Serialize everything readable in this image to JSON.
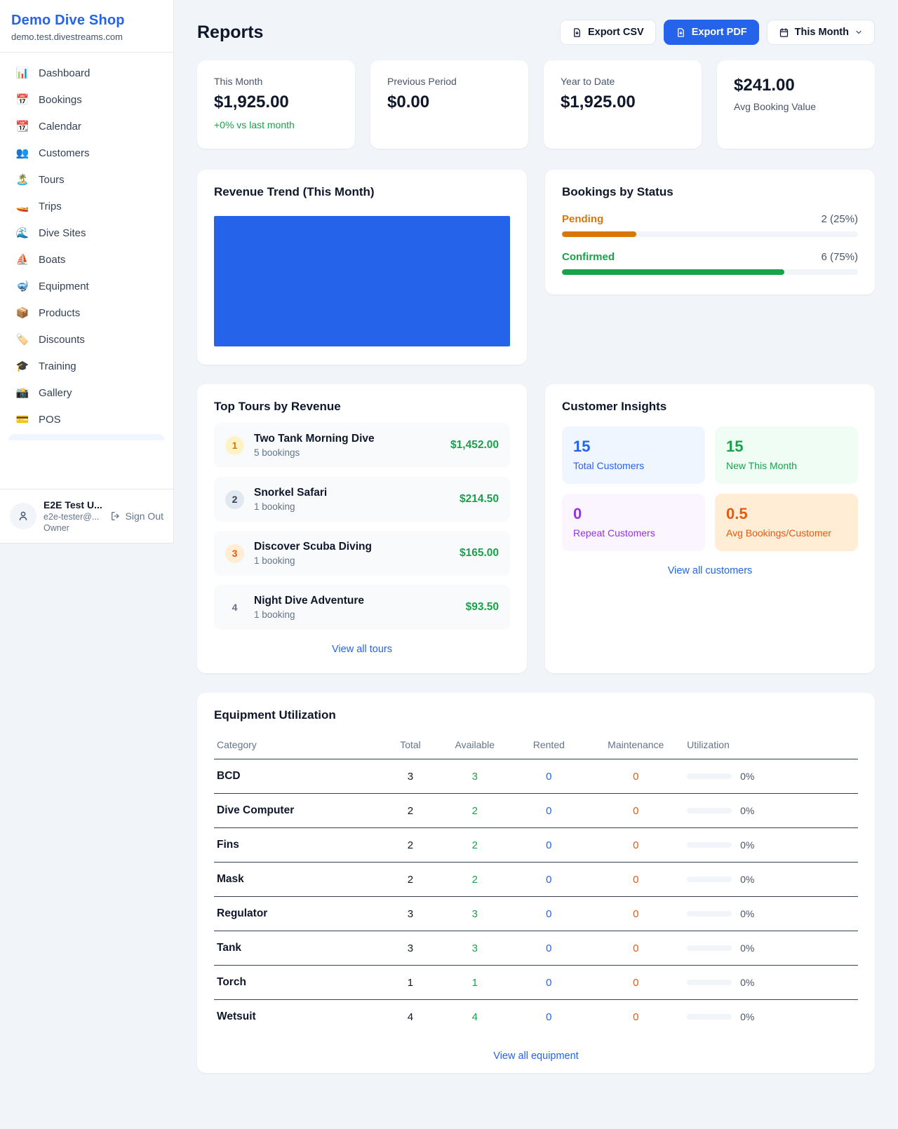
{
  "colors": {
    "accent": "#2563eb",
    "green": "#16a34a",
    "amber": "#d97706",
    "orange": "#ea580c",
    "purple": "#9333ea"
  },
  "sidebar": {
    "shop_name": "Demo Dive Shop",
    "shop_domain": "demo.test.divestreams.com",
    "items": [
      {
        "icon": "📊",
        "label": "Dashboard"
      },
      {
        "icon": "📅",
        "label": "Bookings"
      },
      {
        "icon": "📆",
        "label": "Calendar"
      },
      {
        "icon": "👥",
        "label": "Customers"
      },
      {
        "icon": "🏝️",
        "label": "Tours"
      },
      {
        "icon": "🚤",
        "label": "Trips"
      },
      {
        "icon": "🌊",
        "label": "Dive Sites"
      },
      {
        "icon": "⛵",
        "label": "Boats"
      },
      {
        "icon": "🤿",
        "label": "Equipment"
      },
      {
        "icon": "📦",
        "label": "Products"
      },
      {
        "icon": "🏷️",
        "label": "Discounts"
      },
      {
        "icon": "🎓",
        "label": "Training"
      },
      {
        "icon": "📸",
        "label": "Gallery"
      },
      {
        "icon": "💳",
        "label": "POS"
      }
    ],
    "user": {
      "name": "E2E Test U...",
      "email": "e2e-tester@...",
      "role": "Owner",
      "sign_out": "Sign Out"
    }
  },
  "header": {
    "title": "Reports",
    "export_csv": "Export CSV",
    "export_pdf": "Export PDF",
    "period": "This Month"
  },
  "stats": [
    {
      "label": "This Month",
      "value": "$1,925.00",
      "sub": "+0% vs last month"
    },
    {
      "label": "Previous Period",
      "value": "$0.00"
    },
    {
      "label": "Year to Date",
      "value": "$1,925.00"
    },
    {
      "label": "Avg Booking Value",
      "value": "$241.00"
    }
  ],
  "revenue_trend": {
    "title": "Revenue Trend (This Month)",
    "bar_color": "#2563eb",
    "fill_pct": 100
  },
  "bookings_by_status": {
    "title": "Bookings by Status",
    "rows": [
      {
        "label": "Pending",
        "count": "2 (25%)",
        "pct": 25,
        "color": "#d97706"
      },
      {
        "label": "Confirmed",
        "count": "6 (75%)",
        "pct": 75,
        "color": "#16a34a"
      }
    ]
  },
  "top_tours": {
    "title": "Top Tours by Revenue",
    "view_all": "View all tours",
    "rows": [
      {
        "rank": "1",
        "name": "Two Tank Morning Dive",
        "bookings": "5 bookings",
        "amount": "$1,452.00",
        "badge_bg": "#fef3c7",
        "badge_fg": "#d97706"
      },
      {
        "rank": "2",
        "name": "Snorkel Safari",
        "bookings": "1 booking",
        "amount": "$214.50",
        "badge_bg": "#e2e8f0",
        "badge_fg": "#334155"
      },
      {
        "rank": "3",
        "name": "Discover Scuba Diving",
        "bookings": "1 booking",
        "amount": "$165.00",
        "badge_bg": "#ffedd5",
        "badge_fg": "#ea580c"
      },
      {
        "rank": "4",
        "name": "Night Dive Adventure",
        "bookings": "1 booking",
        "amount": "$93.50",
        "badge_bg": "transparent",
        "badge_fg": "#64748b"
      }
    ]
  },
  "customer_insights": {
    "title": "Customer Insights",
    "view_all": "View all customers",
    "tiles": [
      {
        "value": "15",
        "label": "Total Customers",
        "bg": "#eff6ff",
        "fg": "#2563eb"
      },
      {
        "value": "15",
        "label": "New This Month",
        "bg": "#f0fdf4",
        "fg": "#16a34a"
      },
      {
        "value": "0",
        "label": "Repeat Customers",
        "bg": "#faf5ff",
        "fg": "#9333ea"
      },
      {
        "value": "0.5",
        "label": "Avg Bookings/Customer",
        "bg": "#ffedd5",
        "fg": "#ea580c"
      }
    ]
  },
  "equipment": {
    "title": "Equipment Utilization",
    "view_all": "View all equipment",
    "columns": [
      "Category",
      "Total",
      "Available",
      "Rented",
      "Maintenance",
      "Utilization"
    ],
    "value_colors": {
      "total": "#0f172a",
      "available": "#16a34a",
      "rented": "#2563eb",
      "maintenance": "#ea580c"
    },
    "rows": [
      {
        "category": "BCD",
        "total": "3",
        "available": "3",
        "rented": "0",
        "maintenance": "0",
        "utilization": "0%",
        "pct": 0
      },
      {
        "category": "Dive Computer",
        "total": "2",
        "available": "2",
        "rented": "0",
        "maintenance": "0",
        "utilization": "0%",
        "pct": 0
      },
      {
        "category": "Fins",
        "total": "2",
        "available": "2",
        "rented": "0",
        "maintenance": "0",
        "utilization": "0%",
        "pct": 0
      },
      {
        "category": "Mask",
        "total": "2",
        "available": "2",
        "rented": "0",
        "maintenance": "0",
        "utilization": "0%",
        "pct": 0
      },
      {
        "category": "Regulator",
        "total": "3",
        "available": "3",
        "rented": "0",
        "maintenance": "0",
        "utilization": "0%",
        "pct": 0
      },
      {
        "category": "Tank",
        "total": "3",
        "available": "3",
        "rented": "0",
        "maintenance": "0",
        "utilization": "0%",
        "pct": 0
      },
      {
        "category": "Torch",
        "total": "1",
        "available": "1",
        "rented": "0",
        "maintenance": "0",
        "utilization": "0%",
        "pct": 0
      },
      {
        "category": "Wetsuit",
        "total": "4",
        "available": "4",
        "rented": "0",
        "maintenance": "0",
        "utilization": "0%",
        "pct": 0
      }
    ]
  }
}
